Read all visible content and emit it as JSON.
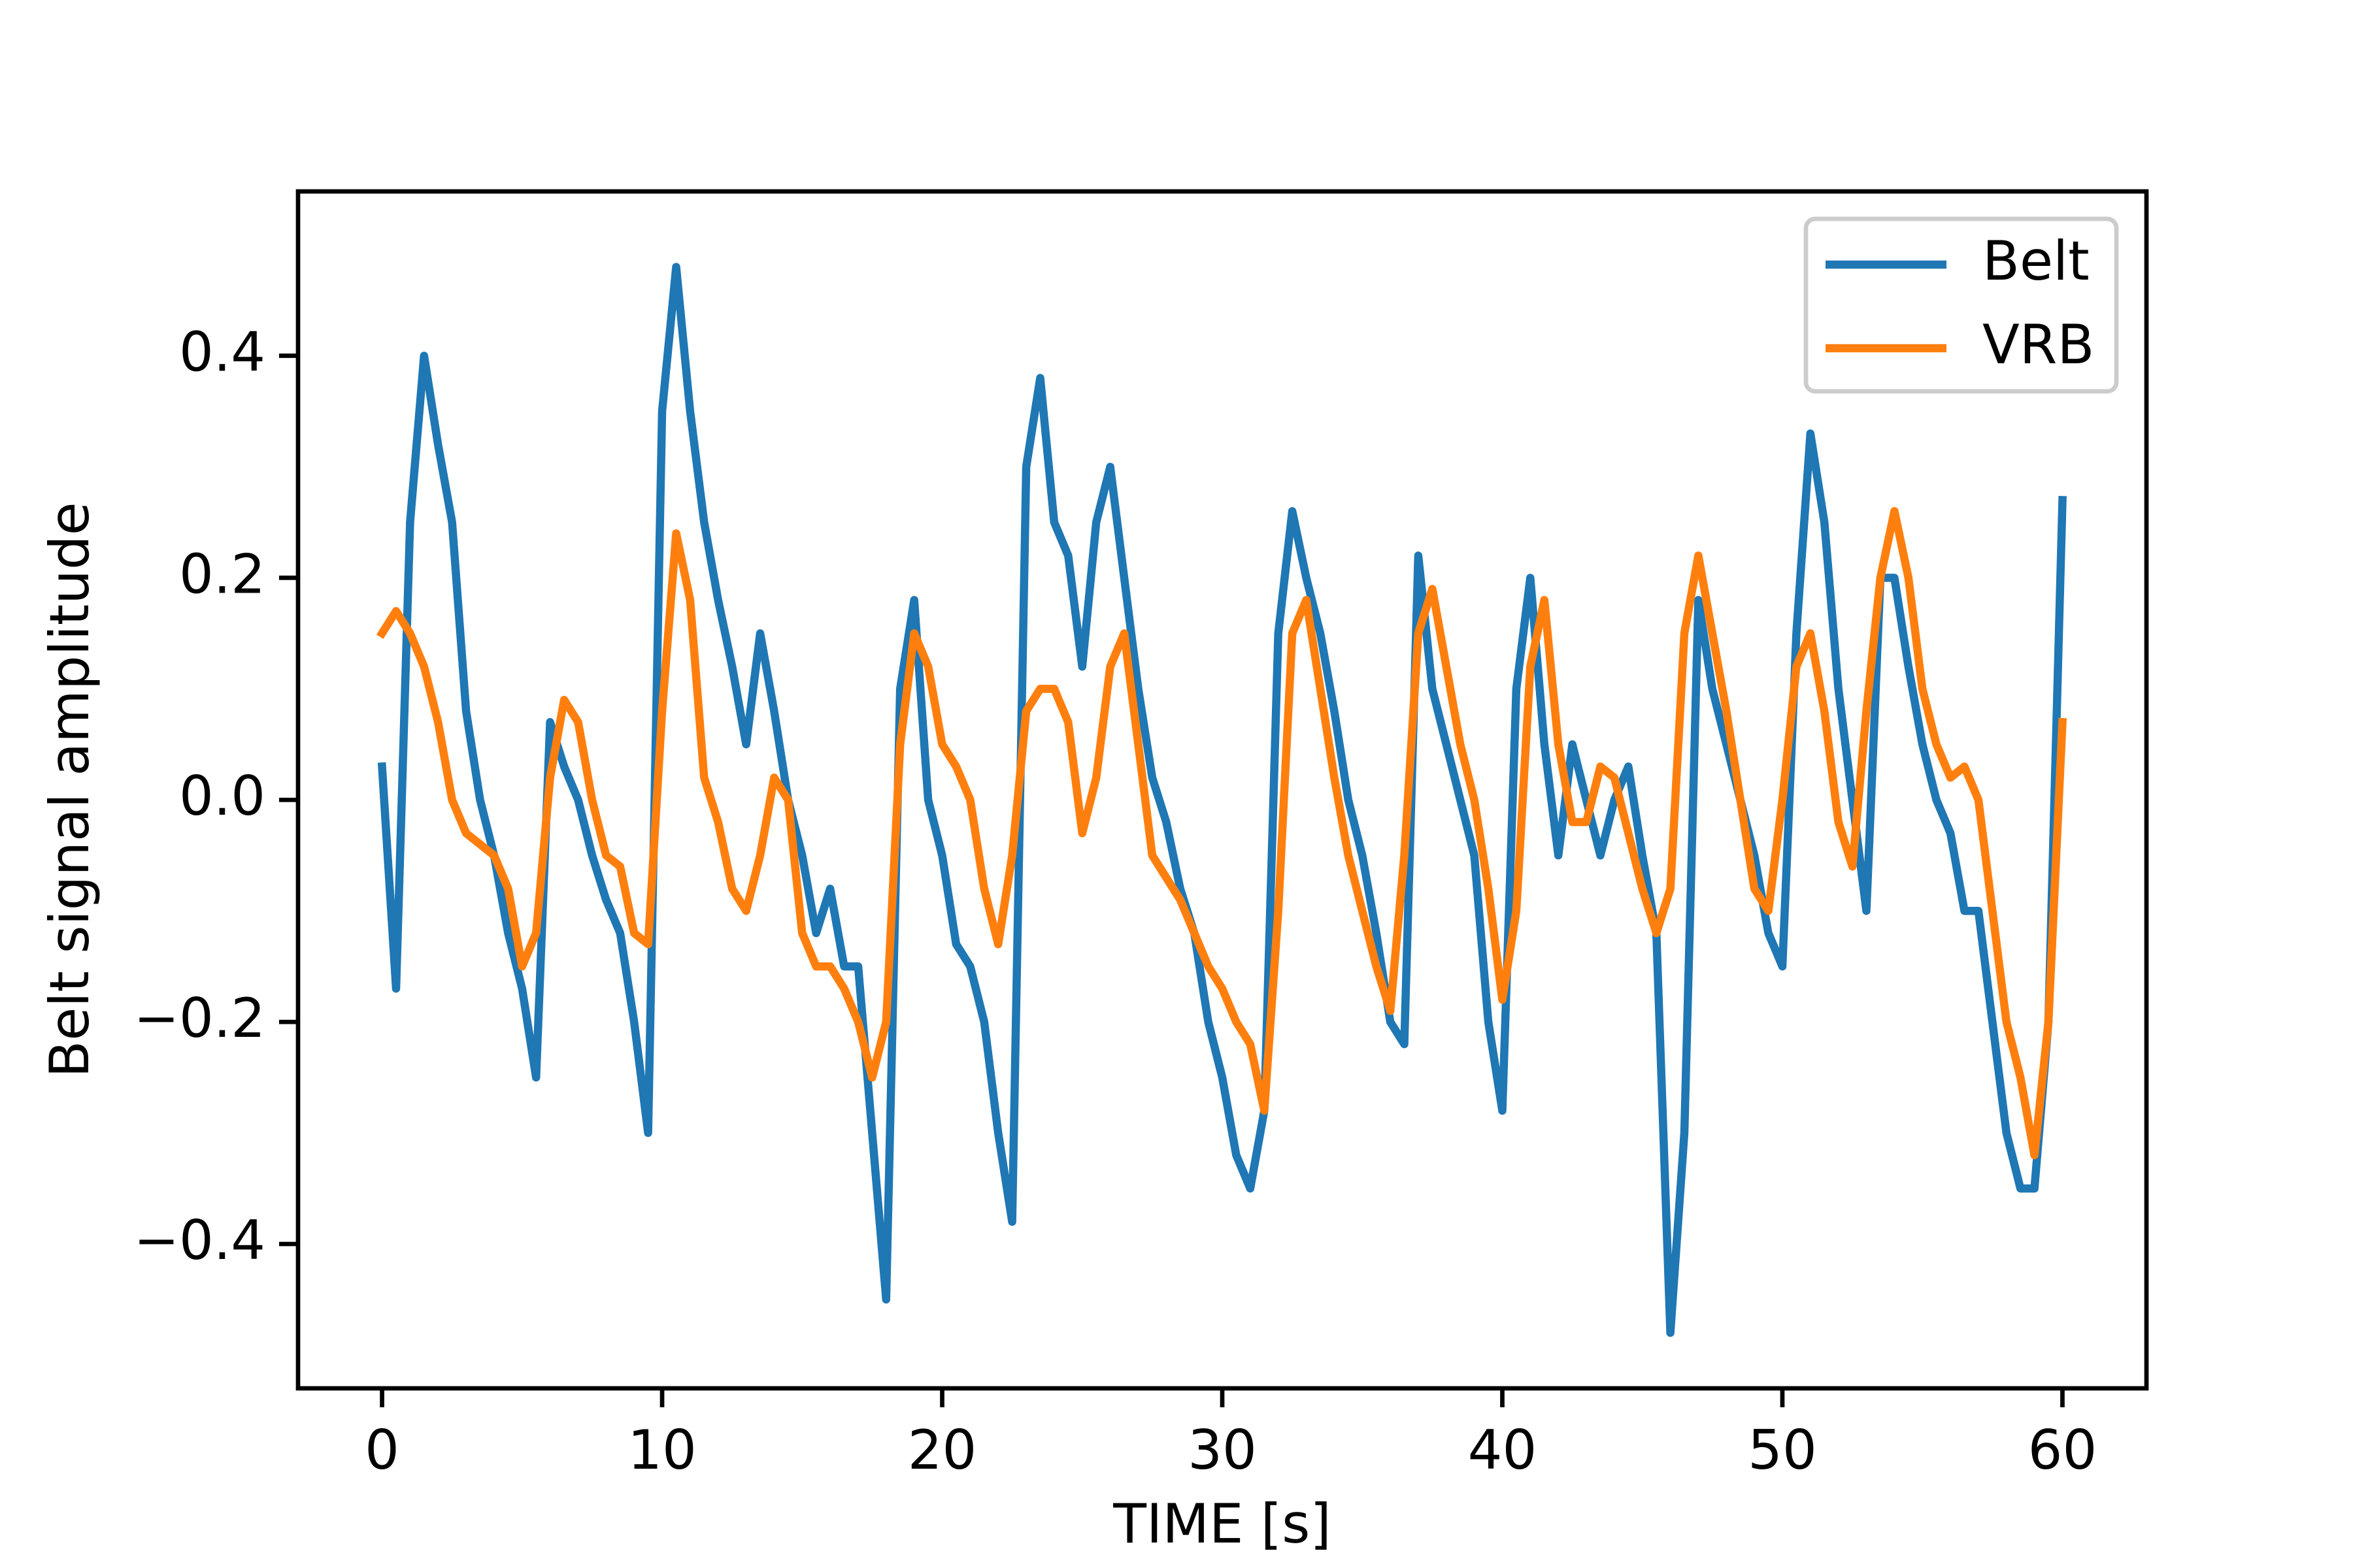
{
  "chart_data": {
    "type": "line",
    "xlabel": "TIME [s]",
    "ylabel": "Belt signal amplitude",
    "x": [
      0,
      0.5,
      1,
      1.5,
      2,
      2.5,
      3,
      3.5,
      4,
      4.5,
      5,
      5.5,
      6,
      6.5,
      7,
      7.5,
      8,
      8.5,
      9,
      9.5,
      10,
      10.5,
      11,
      11.5,
      12,
      12.5,
      13,
      13.5,
      14,
      14.5,
      15,
      15.5,
      16,
      16.5,
      17,
      17.5,
      18,
      18.5,
      19,
      19.5,
      20,
      20.5,
      21,
      21.5,
      22,
      22.5,
      23,
      23.5,
      24,
      24.5,
      25,
      25.5,
      26,
      26.5,
      27,
      27.5,
      28,
      28.5,
      29,
      29.5,
      30,
      30.5,
      31,
      31.5,
      32,
      32.5,
      33,
      33.5,
      34,
      34.5,
      35,
      35.5,
      36,
      36.5,
      37,
      37.5,
      38,
      38.5,
      39,
      39.5,
      40,
      40.5,
      41,
      41.5,
      42,
      42.5,
      43,
      43.5,
      44,
      44.5,
      45,
      45.5,
      46,
      46.5,
      47,
      47.5,
      48,
      48.5,
      49,
      49.5,
      50,
      50.5,
      51,
      51.5,
      52,
      52.5,
      53,
      53.5,
      54,
      54.5,
      55,
      55.5,
      56,
      56.5,
      57,
      57.5,
      58,
      58.5,
      59,
      59.5,
      60
    ],
    "series": [
      {
        "name": "Belt",
        "color": "#1f77b4",
        "values": [
          0.03,
          -0.17,
          0.25,
          0.4,
          0.32,
          0.25,
          0.08,
          0.0,
          -0.05,
          -0.12,
          -0.17,
          -0.25,
          0.07,
          0.03,
          0.0,
          -0.05,
          -0.09,
          -0.12,
          -0.2,
          -0.3,
          0.35,
          0.48,
          0.35,
          0.25,
          0.18,
          0.12,
          0.05,
          0.15,
          0.08,
          0.0,
          -0.05,
          -0.12,
          -0.08,
          -0.15,
          -0.15,
          -0.3,
          -0.45,
          0.1,
          0.18,
          0.0,
          -0.05,
          -0.13,
          -0.15,
          -0.2,
          -0.3,
          -0.38,
          0.3,
          0.38,
          0.25,
          0.22,
          0.12,
          0.25,
          0.3,
          0.2,
          0.1,
          0.02,
          -0.02,
          -0.08,
          -0.12,
          -0.2,
          -0.25,
          -0.32,
          -0.35,
          -0.28,
          0.15,
          0.26,
          0.2,
          0.15,
          0.08,
          0.0,
          -0.05,
          -0.12,
          -0.2,
          -0.22,
          0.22,
          0.1,
          0.05,
          0.0,
          -0.05,
          -0.2,
          -0.28,
          0.1,
          0.2,
          0.05,
          -0.05,
          0.05,
          0.0,
          -0.05,
          0.0,
          0.03,
          -0.05,
          -0.12,
          -0.48,
          -0.3,
          0.18,
          0.1,
          0.05,
          0.0,
          -0.05,
          -0.12,
          -0.15,
          0.15,
          0.33,
          0.25,
          0.1,
          0.0,
          -0.1,
          0.2,
          0.2,
          0.12,
          0.05,
          0.0,
          -0.03,
          -0.1,
          -0.1,
          -0.2,
          -0.3,
          -0.35,
          -0.35,
          -0.2,
          0.27
        ]
      },
      {
        "name": "VRB",
        "color": "#ff7f0e",
        "values": [
          0.15,
          0.17,
          0.15,
          0.12,
          0.07,
          0.0,
          -0.03,
          -0.04,
          -0.05,
          -0.08,
          -0.15,
          -0.12,
          0.02,
          0.09,
          0.07,
          0.0,
          -0.05,
          -0.06,
          -0.12,
          -0.13,
          0.08,
          0.24,
          0.18,
          0.02,
          -0.02,
          -0.08,
          -0.1,
          -0.05,
          0.02,
          0.0,
          -0.12,
          -0.15,
          -0.15,
          -0.17,
          -0.2,
          -0.25,
          -0.2,
          0.05,
          0.15,
          0.12,
          0.05,
          0.03,
          0.0,
          -0.08,
          -0.13,
          -0.05,
          0.08,
          0.1,
          0.1,
          0.07,
          -0.03,
          0.02,
          0.12,
          0.15,
          0.05,
          -0.05,
          -0.07,
          -0.09,
          -0.12,
          -0.15,
          -0.17,
          -0.2,
          -0.22,
          -0.28,
          -0.1,
          0.15,
          0.18,
          0.1,
          0.02,
          -0.05,
          -0.1,
          -0.15,
          -0.19,
          -0.05,
          0.15,
          0.19,
          0.12,
          0.05,
          0.0,
          -0.08,
          -0.18,
          -0.1,
          0.12,
          0.18,
          0.05,
          -0.02,
          -0.02,
          0.03,
          0.02,
          -0.03,
          -0.08,
          -0.12,
          -0.08,
          0.15,
          0.22,
          0.15,
          0.08,
          0.0,
          -0.08,
          -0.1,
          0.0,
          0.12,
          0.15,
          0.08,
          -0.02,
          -0.06,
          0.08,
          0.2,
          0.26,
          0.2,
          0.1,
          0.05,
          0.02,
          0.03,
          0.0,
          -0.1,
          -0.2,
          -0.25,
          -0.32,
          -0.2,
          0.07
        ]
      }
    ],
    "xlim": [
      -3,
      63
    ],
    "xticks": [
      0,
      10,
      20,
      30,
      40,
      50,
      60
    ],
    "ylim": [
      -0.53,
      0.548
    ],
    "yticks": [
      {
        "value": -0.4,
        "label": "−0.4"
      },
      {
        "value": -0.2,
        "label": "−0.2"
      },
      {
        "value": 0.0,
        "label": "0.0"
      },
      0.2,
      0.4
    ],
    "legend": "upper right"
  }
}
